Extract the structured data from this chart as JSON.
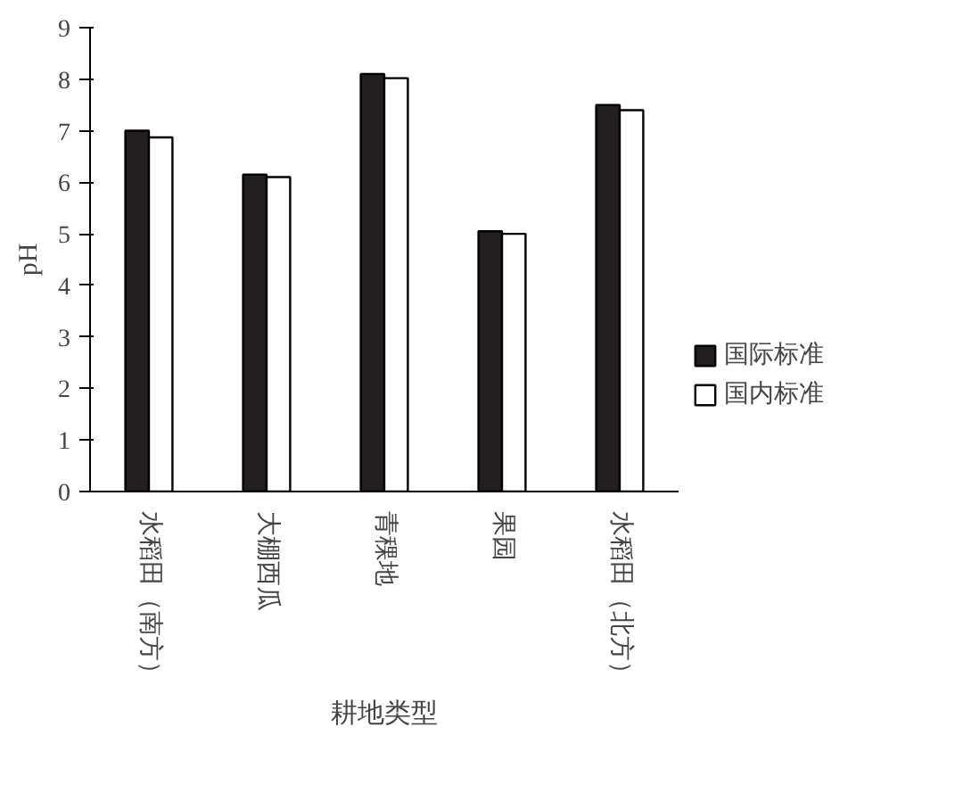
{
  "chart_data": {
    "type": "bar",
    "xlabel": "耕地类型",
    "ylabel": "pH",
    "categories": [
      "水稻田（南方）",
      "大棚西瓜",
      "青稞地",
      "果园",
      "水稻田（北方）"
    ],
    "series": [
      {
        "name": "国际标准",
        "color": "#231f20",
        "values": [
          7.0,
          6.15,
          8.1,
          5.05,
          7.5
        ]
      },
      {
        "name": "国内标准",
        "color": "#ffffff",
        "values": [
          6.87,
          6.1,
          8.02,
          5.0,
          7.4
        ]
      }
    ],
    "ylim": [
      0,
      9
    ],
    "yticks": [
      0,
      1,
      2,
      3,
      4,
      5,
      6,
      7,
      8,
      9
    ],
    "grid": false,
    "legend": "right"
  }
}
